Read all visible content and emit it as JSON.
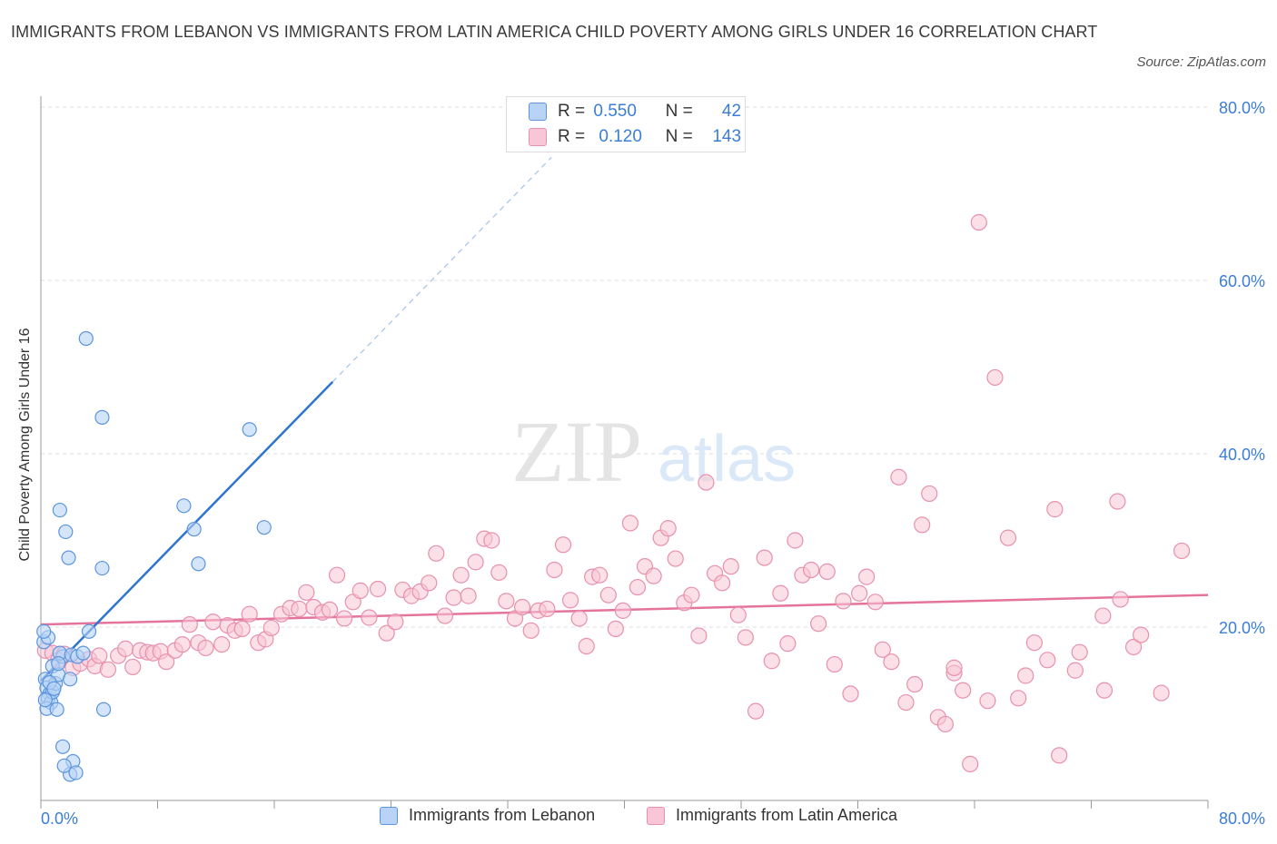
{
  "title": "IMMIGRANTS FROM LEBANON VS IMMIGRANTS FROM LATIN AMERICA CHILD POVERTY AMONG GIRLS UNDER 16 CORRELATION CHART",
  "source": "Source: ZipAtlas.com",
  "watermark": {
    "zip": "ZIP",
    "atlas": "atlas"
  },
  "legend": {
    "r_label": "R =",
    "n_label": "N =",
    "lebanon": {
      "r": "0.550",
      "n": "42"
    },
    "latin": {
      "r": "0.120",
      "n": "143"
    }
  },
  "colors": {
    "lebanon_fill": "#b8d3f5",
    "lebanon_stroke": "#5b95de",
    "lebanon_line": "#2f74d0",
    "latin_fill": "#f8c6d6",
    "latin_stroke": "#e890ad",
    "latin_line": "#e4749c",
    "tick_text": "#3b7dd8",
    "grid": "#dcdcdc"
  },
  "chart_data": {
    "type": "scatter",
    "xlabel": "",
    "ylabel": "Child Poverty Among Girls Under 16",
    "xlim": [
      0,
      80
    ],
    "ylim": [
      0,
      80
    ],
    "x_tick_labels": [
      "0.0%",
      "80.0%"
    ],
    "y_ticks": [
      20,
      40,
      60,
      80
    ],
    "y_tick_labels": [
      "20.0%",
      "40.0%",
      "60.0%",
      "80.0%"
    ],
    "grid": true,
    "legend_position": "top-center",
    "series": [
      {
        "name": "Immigrants from Lebanon",
        "trend": {
          "x0": 0,
          "y0": 13.8,
          "x1": 20,
          "y1": 48.3,
          "dash_to_x": 35,
          "dash_to_y": 74.2
        },
        "points": [
          [
            0.2,
            18.3
          ],
          [
            0.5,
            18.8
          ],
          [
            0.8,
            15.5
          ],
          [
            0.3,
            14.0
          ],
          [
            0.4,
            13.0
          ],
          [
            0.6,
            12.3
          ],
          [
            0.5,
            11.8
          ],
          [
            0.7,
            11.3
          ],
          [
            0.4,
            10.6
          ],
          [
            1.1,
            10.5
          ],
          [
            0.8,
            12.5
          ],
          [
            1.0,
            13.5
          ],
          [
            1.2,
            14.5
          ],
          [
            1.5,
            16.6
          ],
          [
            1.3,
            17.0
          ],
          [
            2.1,
            16.8
          ],
          [
            2.5,
            16.6
          ],
          [
            2.9,
            17.0
          ],
          [
            2.0,
            14.0
          ],
          [
            1.5,
            6.2
          ],
          [
            2.2,
            4.5
          ],
          [
            2.0,
            3.0
          ],
          [
            1.6,
            4.0
          ],
          [
            2.4,
            3.2
          ],
          [
            3.3,
            19.5
          ],
          [
            4.3,
            10.5
          ],
          [
            4.2,
            26.8
          ],
          [
            1.9,
            28.0
          ],
          [
            1.7,
            31.0
          ],
          [
            1.3,
            33.5
          ],
          [
            3.1,
            53.3
          ],
          [
            4.2,
            44.2
          ],
          [
            9.8,
            34.0
          ],
          [
            10.5,
            31.3
          ],
          [
            10.8,
            27.3
          ],
          [
            14.3,
            42.8
          ],
          [
            15.3,
            31.5
          ],
          [
            0.6,
            13.6
          ],
          [
            0.9,
            12.9
          ],
          [
            0.3,
            11.6
          ],
          [
            1.2,
            15.8
          ],
          [
            0.2,
            19.5
          ]
        ]
      },
      {
        "name": "Immigrants from Latin America",
        "trend": {
          "x0": 0,
          "y0": 20.3,
          "x1": 80,
          "y1": 23.7
        },
        "points": [
          [
            0.3,
            17.3
          ],
          [
            0.8,
            17.0
          ],
          [
            1.2,
            16.2
          ],
          [
            1.6,
            16.9
          ],
          [
            2.2,
            15.3
          ],
          [
            2.7,
            15.8
          ],
          [
            3.3,
            16.3
          ],
          [
            3.7,
            15.5
          ],
          [
            4.0,
            16.7
          ],
          [
            4.6,
            15.1
          ],
          [
            5.3,
            16.7
          ],
          [
            5.8,
            17.5
          ],
          [
            6.3,
            15.4
          ],
          [
            6.8,
            17.3
          ],
          [
            7.3,
            17.1
          ],
          [
            7.7,
            17.0
          ],
          [
            8.2,
            17.2
          ],
          [
            8.6,
            16.0
          ],
          [
            9.2,
            17.3
          ],
          [
            9.7,
            18.0
          ],
          [
            10.2,
            20.3
          ],
          [
            10.8,
            18.2
          ],
          [
            11.3,
            17.6
          ],
          [
            11.8,
            20.6
          ],
          [
            12.4,
            18.0
          ],
          [
            12.8,
            20.2
          ],
          [
            13.3,
            19.6
          ],
          [
            13.8,
            19.8
          ],
          [
            14.3,
            21.5
          ],
          [
            14.9,
            18.2
          ],
          [
            15.4,
            18.6
          ],
          [
            15.8,
            19.9
          ],
          [
            16.5,
            21.5
          ],
          [
            17.1,
            22.2
          ],
          [
            17.7,
            22.1
          ],
          [
            18.2,
            24.0
          ],
          [
            18.7,
            22.3
          ],
          [
            19.3,
            21.7
          ],
          [
            19.8,
            22.0
          ],
          [
            20.3,
            26.0
          ],
          [
            20.8,
            21.0
          ],
          [
            21.4,
            22.9
          ],
          [
            21.9,
            24.2
          ],
          [
            22.5,
            21.1
          ],
          [
            23.1,
            24.4
          ],
          [
            23.7,
            19.3
          ],
          [
            24.3,
            20.6
          ],
          [
            24.8,
            24.3
          ],
          [
            25.4,
            23.6
          ],
          [
            26.0,
            24.1
          ],
          [
            26.6,
            25.1
          ],
          [
            27.1,
            28.5
          ],
          [
            27.7,
            21.3
          ],
          [
            28.3,
            23.4
          ],
          [
            28.8,
            26.0
          ],
          [
            29.3,
            23.6
          ],
          [
            29.8,
            27.5
          ],
          [
            30.4,
            30.2
          ],
          [
            30.9,
            30.0
          ],
          [
            31.4,
            26.3
          ],
          [
            31.9,
            23.0
          ],
          [
            32.5,
            21.0
          ],
          [
            33.0,
            22.3
          ],
          [
            33.6,
            19.6
          ],
          [
            34.1,
            21.9
          ],
          [
            34.7,
            22.1
          ],
          [
            35.2,
            26.6
          ],
          [
            35.8,
            29.5
          ],
          [
            36.3,
            23.1
          ],
          [
            36.9,
            21.0
          ],
          [
            37.4,
            17.8
          ],
          [
            37.8,
            25.8
          ],
          [
            38.3,
            26.0
          ],
          [
            38.9,
            23.7
          ],
          [
            39.4,
            19.8
          ],
          [
            39.9,
            21.9
          ],
          [
            40.4,
            32.0
          ],
          [
            40.9,
            24.6
          ],
          [
            41.4,
            27.0
          ],
          [
            42.0,
            25.9
          ],
          [
            42.5,
            30.3
          ],
          [
            43.0,
            31.4
          ],
          [
            43.5,
            27.9
          ],
          [
            44.1,
            22.8
          ],
          [
            44.6,
            23.7
          ],
          [
            45.1,
            19.0
          ],
          [
            45.6,
            36.7
          ],
          [
            46.2,
            26.2
          ],
          [
            46.7,
            25.1
          ],
          [
            47.3,
            27.0
          ],
          [
            47.8,
            21.4
          ],
          [
            48.3,
            18.8
          ],
          [
            49.0,
            10.3
          ],
          [
            49.6,
            28.0
          ],
          [
            50.1,
            16.1
          ],
          [
            50.7,
            23.9
          ],
          [
            51.2,
            18.1
          ],
          [
            51.7,
            30.0
          ],
          [
            52.2,
            26.0
          ],
          [
            52.8,
            26.6
          ],
          [
            53.3,
            20.4
          ],
          [
            53.9,
            26.4
          ],
          [
            54.4,
            15.7
          ],
          [
            55.0,
            23.0
          ],
          [
            55.5,
            12.3
          ],
          [
            56.1,
            23.9
          ],
          [
            56.6,
            25.8
          ],
          [
            57.2,
            22.9
          ],
          [
            57.7,
            17.4
          ],
          [
            58.3,
            16.0
          ],
          [
            58.8,
            37.3
          ],
          [
            59.3,
            11.3
          ],
          [
            59.9,
            13.4
          ],
          [
            60.4,
            31.8
          ],
          [
            60.9,
            35.4
          ],
          [
            61.5,
            9.6
          ],
          [
            62.0,
            8.8
          ],
          [
            62.6,
            14.7
          ],
          [
            62.6,
            15.3
          ],
          [
            63.2,
            12.7
          ],
          [
            63.7,
            4.2
          ],
          [
            64.3,
            66.7
          ],
          [
            64.9,
            11.5
          ],
          [
            65.4,
            48.8
          ],
          [
            66.3,
            30.3
          ],
          [
            67.0,
            11.8
          ],
          [
            67.5,
            14.4
          ],
          [
            68.1,
            18.2
          ],
          [
            69.0,
            16.2
          ],
          [
            69.5,
            33.6
          ],
          [
            69.8,
            5.2
          ],
          [
            70.9,
            15.0
          ],
          [
            71.2,
            17.1
          ],
          [
            72.8,
            21.3
          ],
          [
            72.9,
            12.7
          ],
          [
            73.8,
            34.5
          ],
          [
            74.0,
            23.2
          ],
          [
            74.9,
            17.7
          ],
          [
            75.4,
            19.1
          ],
          [
            76.8,
            12.4
          ],
          [
            78.2,
            28.8
          ]
        ]
      }
    ]
  },
  "bottom_legend": {
    "lebanon": "Immigrants from Lebanon",
    "latin": "Immigrants from Latin America"
  }
}
